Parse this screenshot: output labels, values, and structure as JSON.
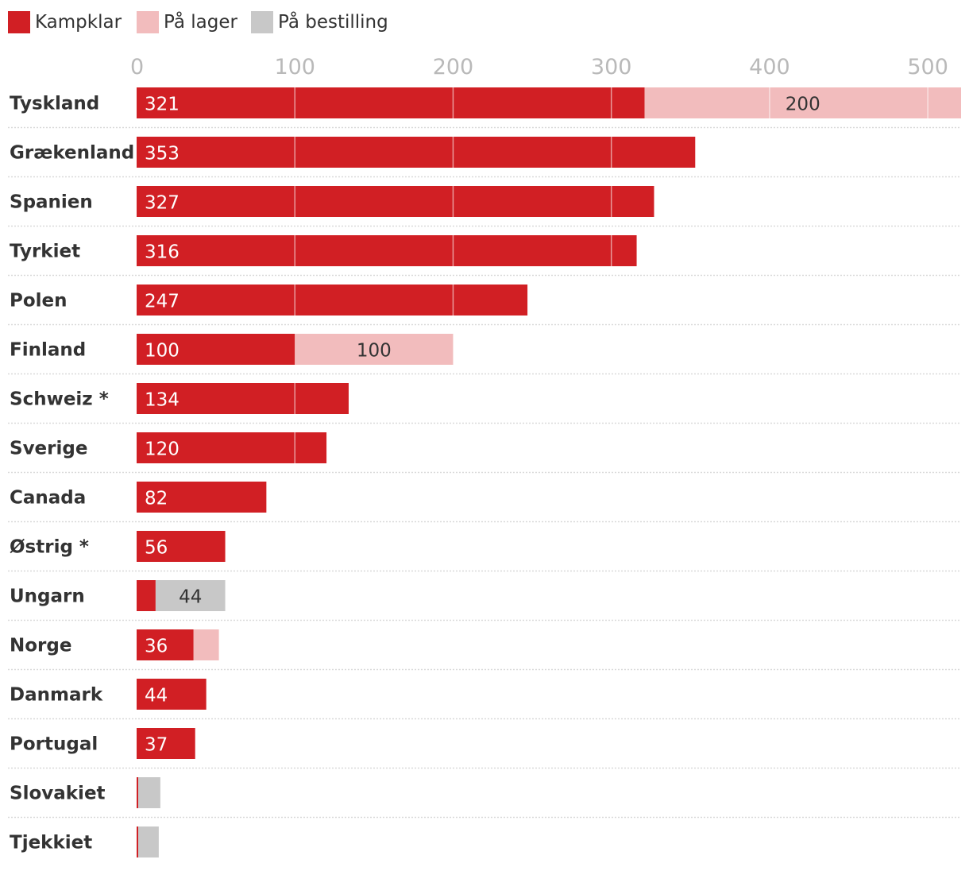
{
  "chart_data": {
    "type": "bar",
    "orientation": "horizontal",
    "stacked": true,
    "title": "",
    "xlabel": "",
    "ylabel": "",
    "xlim": [
      0,
      520
    ],
    "x_ticks": [
      0,
      100,
      200,
      300,
      400,
      500
    ],
    "grid": true,
    "legend_position": "top-left",
    "colors": {
      "Kampklar": "#d11f24",
      "På lager": "#f2bcbd",
      "På bestilling": "#c8c8c8",
      "tick_label": "#b9b9b9",
      "category_label": "#333333",
      "divider": "#d9d9d9"
    },
    "legend": [
      "Kampklar",
      "På lager",
      "På bestilling"
    ],
    "categories": [
      "Tyskland",
      "Grækenland",
      "Spanien",
      "Tyrkiet",
      "Polen",
      "Finland",
      "Schweiz *",
      "Sverige",
      "Canada",
      "Østrig *",
      "Ungarn",
      "Norge",
      "Danmark",
      "Portugal",
      "Slovakiet",
      "Tjekkiet"
    ],
    "series": [
      {
        "name": "Kampklar",
        "values": [
          321,
          353,
          327,
          316,
          247,
          100,
          134,
          120,
          82,
          56,
          12,
          36,
          44,
          37,
          1,
          1
        ],
        "labels": [
          "321",
          "353",
          "327",
          "316",
          "247",
          "100",
          "134",
          "120",
          "82",
          "56",
          "",
          "36",
          "44",
          "37",
          "",
          ""
        ]
      },
      {
        "name": "På lager",
        "values": [
          200,
          0,
          0,
          0,
          0,
          100,
          0,
          0,
          0,
          0,
          0,
          16,
          0,
          0,
          0,
          0
        ],
        "labels": [
          "200",
          "",
          "",
          "",
          "",
          "100",
          "",
          "",
          "",
          "",
          "",
          "",
          "",
          "",
          "",
          ""
        ]
      },
      {
        "name": "På bestilling",
        "values": [
          0,
          0,
          0,
          0,
          0,
          0,
          0,
          0,
          0,
          0,
          44,
          0,
          0,
          0,
          14,
          13
        ],
        "labels": [
          "",
          "",
          "",
          "",
          "",
          "",
          "",
          "",
          "",
          "",
          "44",
          "",
          "",
          "",
          "",
          ""
        ]
      }
    ]
  }
}
